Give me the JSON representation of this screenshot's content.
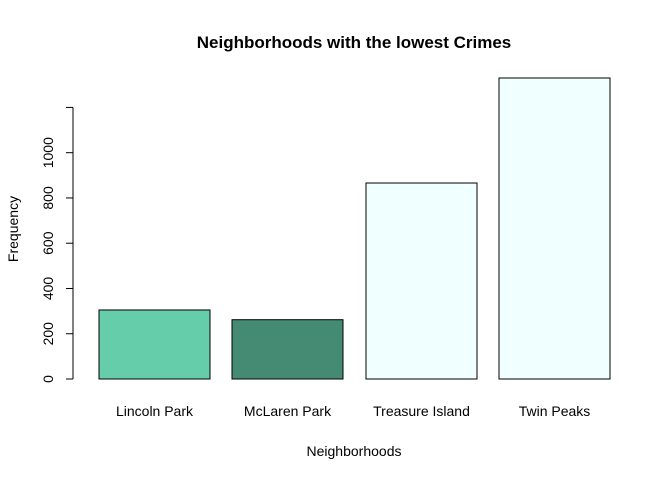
{
  "chart_data": {
    "type": "bar",
    "title": "Neighborhoods with the lowest Crimes",
    "xlabel": "Neighborhoods",
    "ylabel": "Frequency",
    "categories": [
      "Lincoln Park",
      "McLaren Park",
      "Treasure Island",
      "Twin Peaks"
    ],
    "values": [
      305,
      262,
      866,
      1330
    ],
    "colors": [
      "#66CDAA",
      "#458B74",
      "#F0FFFF",
      "#F0FFFF"
    ],
    "ylim": [
      0,
      1330
    ],
    "yticks": [
      0,
      200,
      400,
      600,
      800,
      1000
    ],
    "grid": false,
    "legend": "none"
  }
}
